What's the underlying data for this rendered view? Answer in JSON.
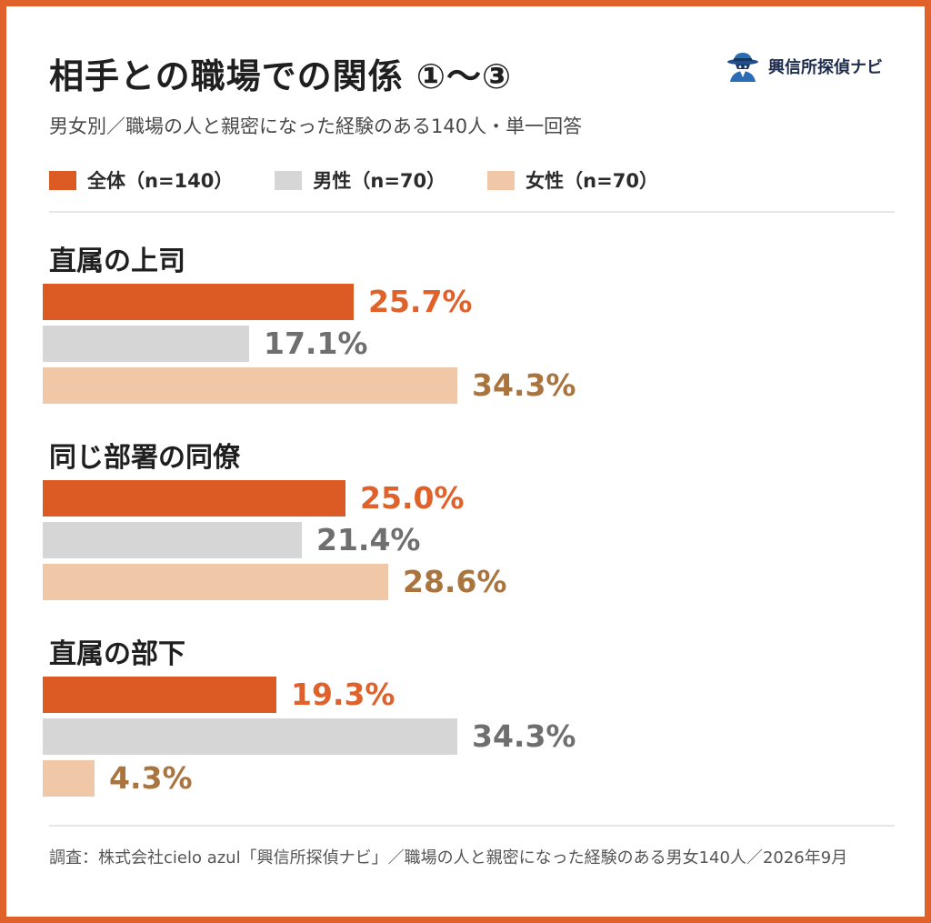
{
  "title": "相手との職場での関係 ①〜③",
  "subtitle": "男女別／職場の人と親密になった経験のある140人・単一回答",
  "brand": {
    "name": "興信所探偵ナビ",
    "icon": "detective-icon"
  },
  "legend": [
    {
      "label": "全体（n=140）",
      "color": "#dc5b25"
    },
    {
      "label": "男性（n=70）",
      "color": "#d6d6d6"
    },
    {
      "label": "女性（n=70）",
      "color": "#f0c8a8"
    }
  ],
  "value_colors": [
    "#e0612a",
    "#6f6f6f",
    "#a9743e"
  ],
  "chart_data": {
    "type": "bar",
    "orientation": "horizontal",
    "unit": "%",
    "categories": [
      "直属の上司",
      "同じ部署の同僚",
      "直属の部下"
    ],
    "series": [
      {
        "name": "全体（n=140）",
        "values": [
          25.7,
          25.0,
          19.3
        ],
        "labels": [
          "25.7%",
          "25.0%",
          "19.3%"
        ]
      },
      {
        "name": "男性（n=70）",
        "values": [
          17.1,
          21.4,
          34.3
        ],
        "labels": [
          "17.1%",
          "21.4%",
          "34.3%"
        ]
      },
      {
        "name": "女性（n=70）",
        "values": [
          34.3,
          28.6,
          4.3
        ],
        "labels": [
          "34.3%",
          "28.6%",
          "4.3%"
        ]
      }
    ]
  },
  "footer": "調査：株式会社cielo azul「興信所探偵ナビ」／職場の人と親密になった経験のある男女140人／2026年9月"
}
